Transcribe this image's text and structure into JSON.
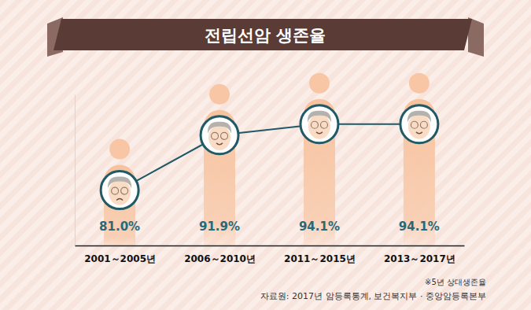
{
  "chart_data": {
    "type": "line",
    "title": "전립선암 생존율",
    "categories": [
      "2001～2005년",
      "2006～2010년",
      "2011～2015년",
      "2013～2017년"
    ],
    "values": [
      81.0,
      91.9,
      94.1,
      94.1
    ],
    "value_labels": [
      "81.0%",
      "91.9%",
      "94.1%",
      "94.1%"
    ],
    "data_labels": true,
    "ylim": [
      70,
      100
    ],
    "tick_labels": "x",
    "color": "#1f5a66",
    "marker": "face",
    "annotations": [
      "※5년 상대생존율",
      "자료원: 2017년 암등록통계, 보건복지부 · 중앙암등록본부"
    ]
  }
}
